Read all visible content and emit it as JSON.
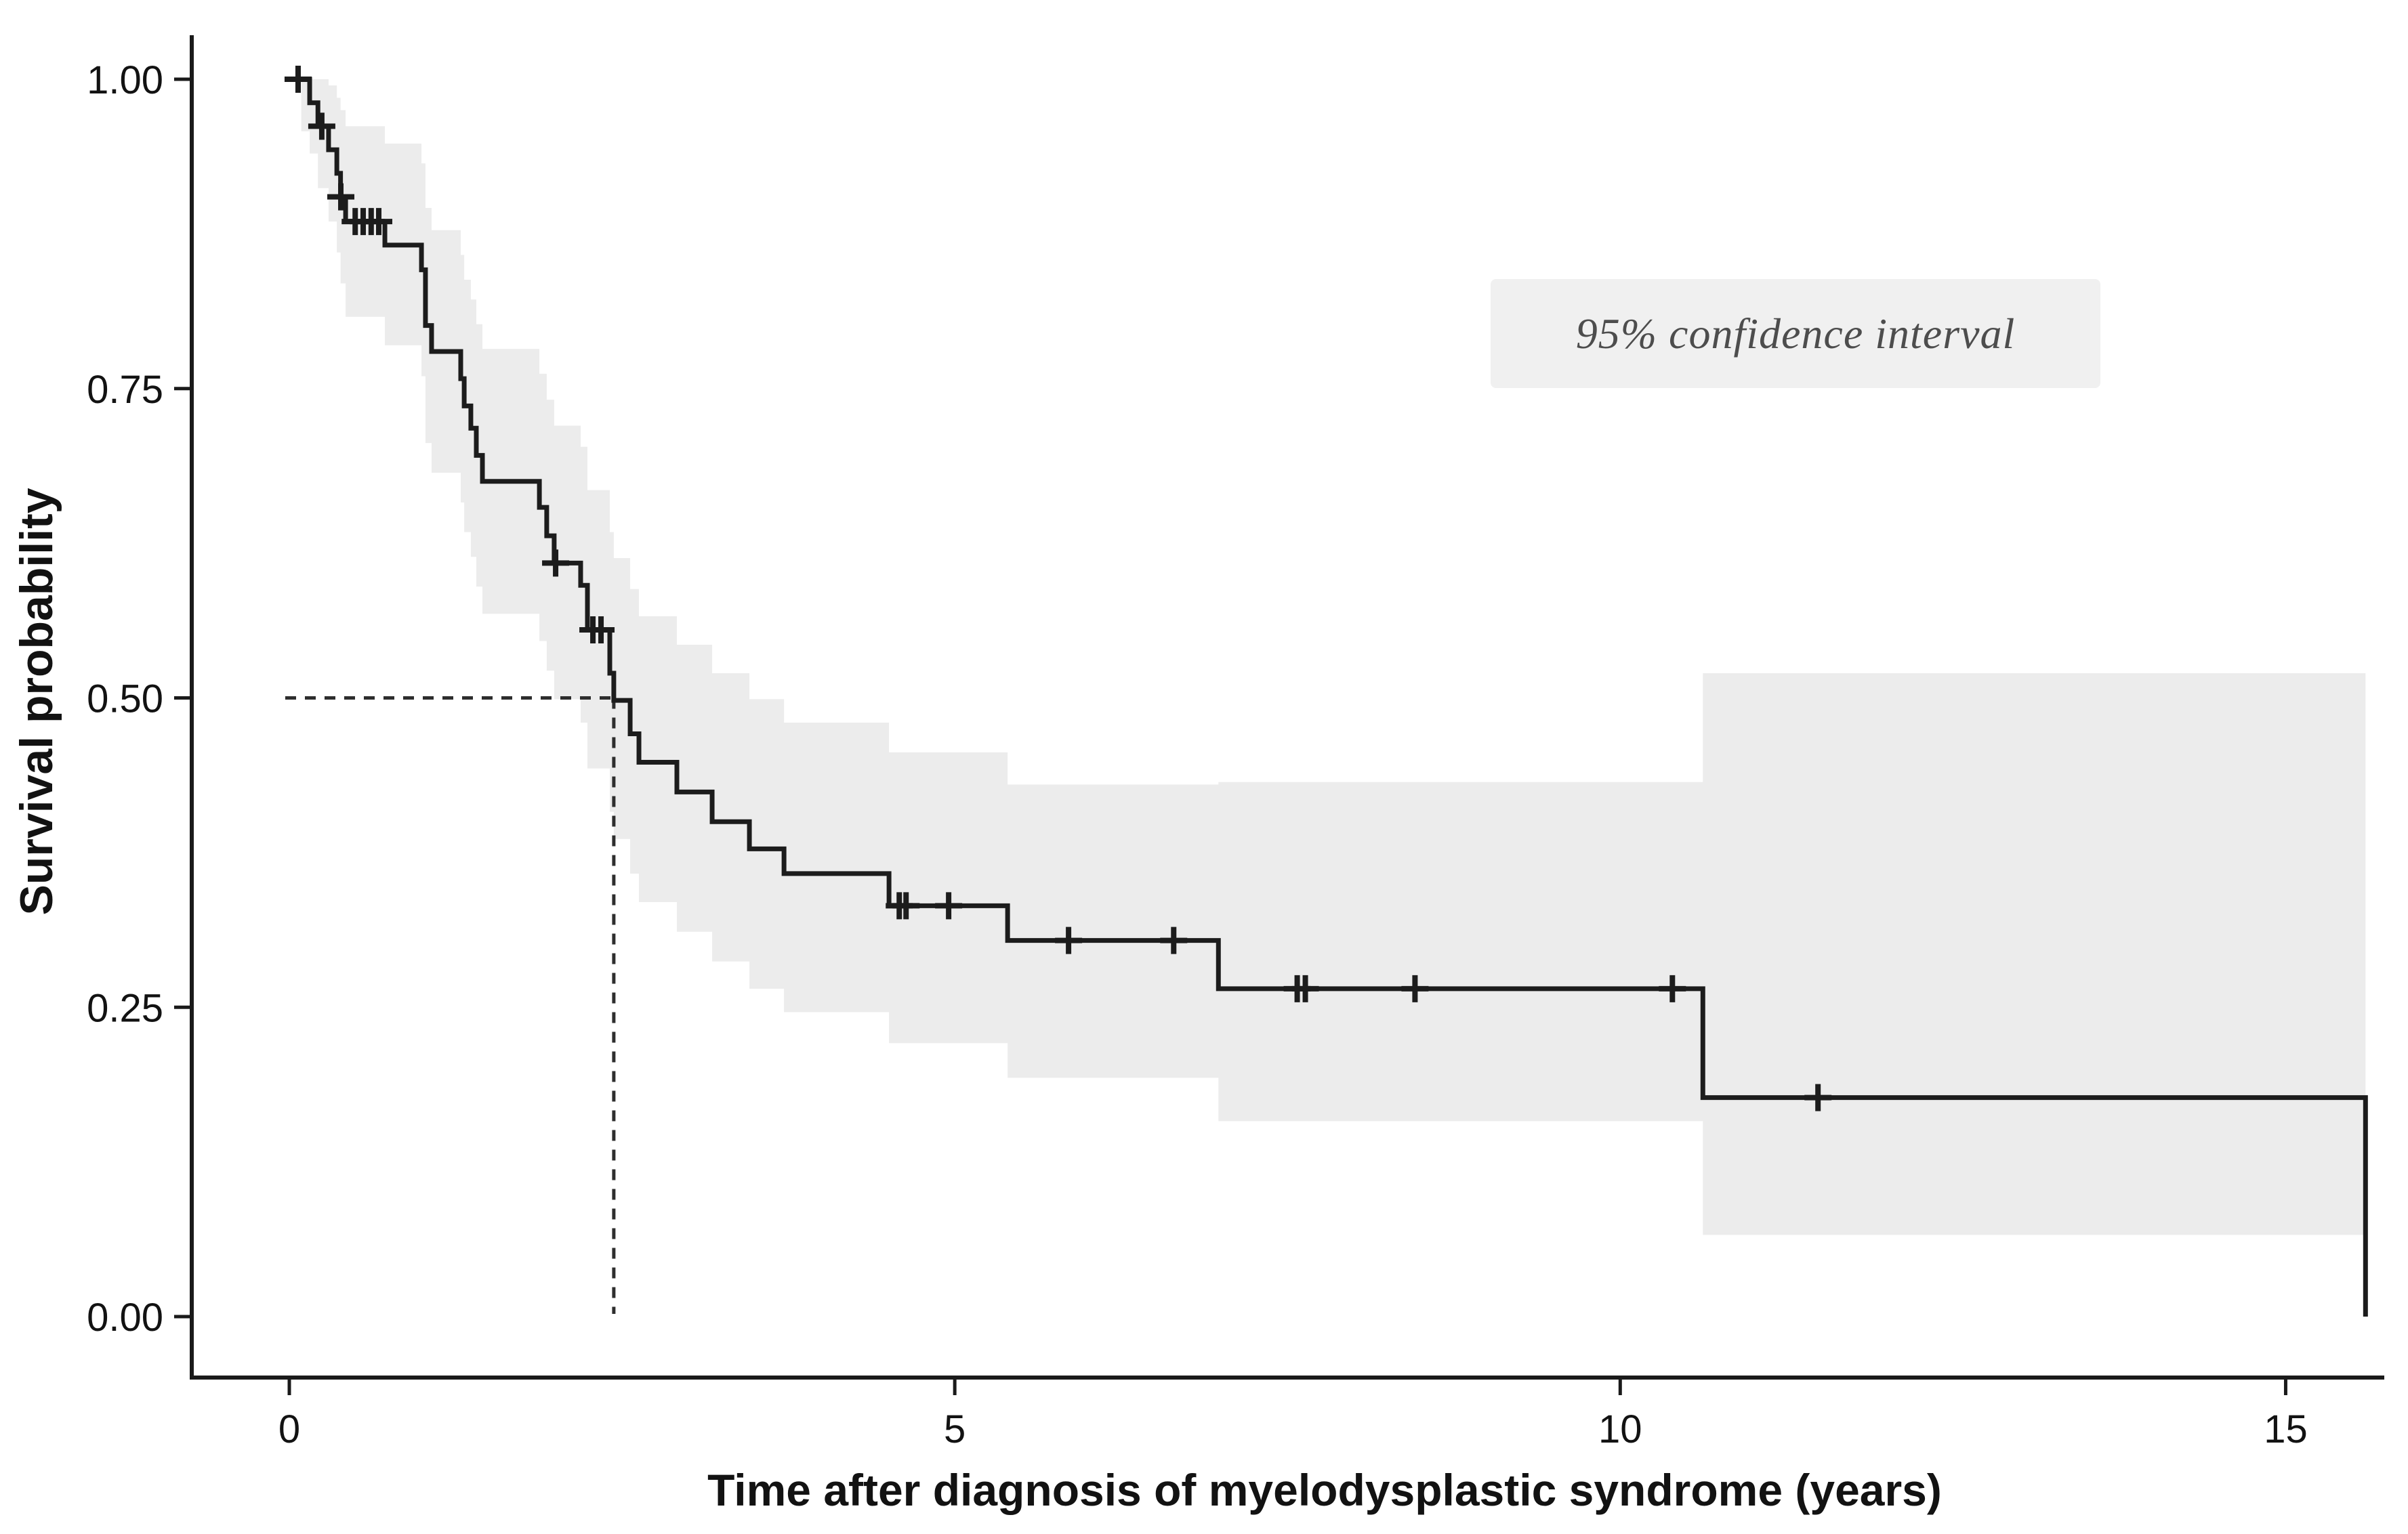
{
  "chart_data": {
    "type": "line",
    "subtype": "kaplan-meier-step-curve",
    "title": "",
    "xlabel": "Time after diagnosis of myelodysplastic syndrome (years)",
    "ylabel": "Survival probability",
    "legend": "95% confidence interval",
    "legend_position": "upper-right-inside",
    "grid": "off",
    "xlim": [
      -0.75,
      15.9
    ],
    "ylim": [
      0,
      1.05
    ],
    "x_ticks": [
      {
        "v": 0,
        "label": "0"
      },
      {
        "v": 5,
        "label": "5"
      },
      {
        "v": 10,
        "label": "10"
      },
      {
        "v": 15,
        "label": "15"
      }
    ],
    "y_ticks": [
      {
        "v": 1.0,
        "label": "1.00"
      },
      {
        "v": 0.75,
        "label": "0.75"
      },
      {
        "v": 0.5,
        "label": "0.50"
      },
      {
        "v": 0.25,
        "label": "0.25"
      },
      {
        "v": 0.0,
        "label": "0.00"
      }
    ],
    "start_point": {
      "t": 0.066,
      "s": 1.0
    },
    "steps": [
      [
        0.153,
        0.981
      ],
      [
        0.215,
        0.962
      ],
      [
        0.295,
        0.943
      ],
      [
        0.357,
        0.924
      ],
      [
        0.385,
        0.905
      ],
      [
        0.423,
        0.885
      ],
      [
        0.718,
        0.866
      ],
      [
        0.993,
        0.846
      ],
      [
        1.023,
        0.801
      ],
      [
        1.069,
        0.78
      ],
      [
        1.288,
        0.758
      ],
      [
        1.314,
        0.736
      ],
      [
        1.364,
        0.718
      ],
      [
        1.405,
        0.696
      ],
      [
        1.451,
        0.675
      ],
      [
        1.879,
        0.654
      ],
      [
        1.934,
        0.631
      ],
      [
        1.99,
        0.609
      ],
      [
        2.189,
        0.591
      ],
      [
        2.24,
        0.555
      ],
      [
        2.408,
        0.52
      ],
      [
        2.438,
        0.498
      ],
      [
        2.561,
        0.471
      ],
      [
        2.627,
        0.448
      ],
      [
        2.912,
        0.424
      ],
      [
        3.177,
        0.4
      ],
      [
        3.457,
        0.378
      ],
      [
        3.717,
        0.358
      ],
      [
        4.506,
        0.332
      ],
      [
        5.397,
        0.304
      ],
      [
        6.981,
        0.265
      ],
      [
        10.621,
        0.177
      ],
      [
        15.6,
        0.0
      ]
    ],
    "censor_marks": [
      [
        0.066,
        1.0
      ],
      [
        0.244,
        0.962
      ],
      [
        0.387,
        0.905
      ],
      [
        0.495,
        0.885
      ],
      [
        0.555,
        0.885
      ],
      [
        0.615,
        0.885
      ],
      [
        0.672,
        0.885
      ],
      [
        2.001,
        0.609
      ],
      [
        2.281,
        0.555
      ],
      [
        2.342,
        0.555
      ],
      [
        4.583,
        0.332
      ],
      [
        4.634,
        0.332
      ],
      [
        4.954,
        0.332
      ],
      [
        5.855,
        0.304
      ],
      [
        6.645,
        0.304
      ],
      [
        7.573,
        0.265
      ],
      [
        7.634,
        0.265
      ],
      [
        8.458,
        0.265
      ],
      [
        10.392,
        0.265
      ],
      [
        11.486,
        0.177
      ]
    ],
    "ci_segments": [
      [
        0.09,
        0.153,
        1.0,
        0.958,
        1.0
      ],
      [
        0.153,
        0.215,
        0.981,
        0.94,
        1.0
      ],
      [
        0.215,
        0.295,
        0.962,
        0.912,
        1.0
      ],
      [
        0.295,
        0.357,
        0.943,
        0.885,
        0.995
      ],
      [
        0.357,
        0.385,
        0.924,
        0.86,
        0.985
      ],
      [
        0.385,
        0.423,
        0.905,
        0.835,
        0.975
      ],
      [
        0.423,
        0.718,
        0.885,
        0.808,
        0.962
      ],
      [
        0.718,
        0.993,
        0.866,
        0.785,
        0.948
      ],
      [
        0.993,
        1.023,
        0.846,
        0.76,
        0.932
      ],
      [
        1.023,
        1.069,
        0.801,
        0.706,
        0.896
      ],
      [
        1.069,
        1.288,
        0.78,
        0.682,
        0.878
      ],
      [
        1.288,
        1.314,
        0.758,
        0.658,
        0.858
      ],
      [
        1.314,
        1.364,
        0.736,
        0.634,
        0.838
      ],
      [
        1.364,
        1.405,
        0.718,
        0.614,
        0.822
      ],
      [
        1.405,
        1.451,
        0.696,
        0.59,
        0.802
      ],
      [
        1.451,
        1.879,
        0.675,
        0.568,
        0.782
      ],
      [
        1.879,
        1.934,
        0.654,
        0.546,
        0.762
      ],
      [
        1.934,
        1.99,
        0.631,
        0.522,
        0.741
      ],
      [
        1.99,
        2.189,
        0.609,
        0.499,
        0.72
      ],
      [
        2.189,
        2.24,
        0.591,
        0.48,
        0.703
      ],
      [
        2.24,
        2.408,
        0.555,
        0.443,
        0.668
      ],
      [
        2.408,
        2.438,
        0.52,
        0.408,
        0.634
      ],
      [
        2.438,
        2.561,
        0.498,
        0.386,
        0.613
      ],
      [
        2.561,
        2.627,
        0.471,
        0.358,
        0.588
      ],
      [
        2.627,
        2.912,
        0.448,
        0.335,
        0.566
      ],
      [
        2.912,
        3.177,
        0.424,
        0.311,
        0.543
      ],
      [
        3.177,
        3.457,
        0.4,
        0.287,
        0.52
      ],
      [
        3.457,
        3.717,
        0.378,
        0.265,
        0.499
      ],
      [
        3.717,
        4.506,
        0.358,
        0.246,
        0.48
      ],
      [
        4.506,
        5.397,
        0.332,
        0.221,
        0.456
      ],
      [
        5.397,
        6.981,
        0.304,
        0.193,
        0.43
      ],
      [
        6.981,
        10.621,
        0.265,
        0.158,
        0.432
      ],
      [
        10.621,
        15.6,
        0.177,
        0.066,
        0.52
      ]
    ],
    "median_annotation": {
      "t": 2.438,
      "s": 0.5,
      "style": "dashed"
    },
    "colors": {
      "curve": "#1c1c1c",
      "confidence_band": "#ececec",
      "legend_background": "#f0f0f0",
      "legend_text": "#4d4d4d",
      "axis": "#1a1a1a",
      "tick_text": "#121212",
      "dashed_line": "#2e2e2e",
      "background": "#ffffff"
    }
  }
}
